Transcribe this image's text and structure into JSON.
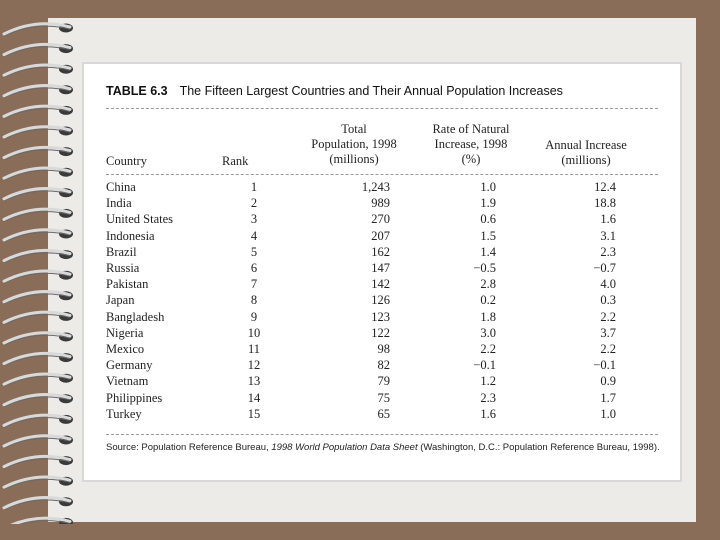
{
  "table": {
    "label": "TABLE 6.3",
    "title": "The Fifteen Largest Countries and Their Annual Population Increases",
    "headers": {
      "country": "Country",
      "rank": "Rank",
      "population": [
        "Total",
        "Population, 1998",
        "(millions)"
      ],
      "rate": [
        "Rate of Natural",
        "Increase, 1998",
        "(%)"
      ],
      "increase": [
        "Annual Increase",
        "(millions)"
      ]
    },
    "rows": [
      {
        "country": "China",
        "rank": "1",
        "population": "1,243",
        "rate": "1.0",
        "increase": "12.4"
      },
      {
        "country": "India",
        "rank": "2",
        "population": "989",
        "rate": "1.9",
        "increase": "18.8"
      },
      {
        "country": "United States",
        "rank": "3",
        "population": "270",
        "rate": "0.6",
        "increase": "1.6"
      },
      {
        "country": "Indonesia",
        "rank": "4",
        "population": "207",
        "rate": "1.5",
        "increase": "3.1"
      },
      {
        "country": "Brazil",
        "rank": "5",
        "population": "162",
        "rate": "1.4",
        "increase": "2.3"
      },
      {
        "country": "Russia",
        "rank": "6",
        "population": "147",
        "rate": "−0.5",
        "increase": "−0.7"
      },
      {
        "country": "Pakistan",
        "rank": "7",
        "population": "142",
        "rate": "2.8",
        "increase": "4.0"
      },
      {
        "country": "Japan",
        "rank": "8",
        "population": "126",
        "rate": "0.2",
        "increase": "0.3"
      },
      {
        "country": "Bangladesh",
        "rank": "9",
        "population": "123",
        "rate": "1.8",
        "increase": "2.2"
      },
      {
        "country": "Nigeria",
        "rank": "10",
        "population": "122",
        "rate": "3.0",
        "increase": "3.7"
      },
      {
        "country": "Mexico",
        "rank": "11",
        "population": "98",
        "rate": "2.2",
        "increase": "2.2"
      },
      {
        "country": "Germany",
        "rank": "12",
        "population": "82",
        "rate": "−0.1",
        "increase": "−0.1"
      },
      {
        "country": "Vietnam",
        "rank": "13",
        "population": "79",
        "rate": "1.2",
        "increase": "0.9"
      },
      {
        "country": "Philippines",
        "rank": "14",
        "population": "75",
        "rate": "2.3",
        "increase": "1.7"
      },
      {
        "country": "Turkey",
        "rank": "15",
        "population": "65",
        "rate": "1.6",
        "increase": "1.0"
      }
    ],
    "source": {
      "prefix": "Source: Population Reference Bureau, ",
      "italic": "1998 World Population Data Sheet",
      "suffix": " (Washington, D.C.: Population Reference Bureau, 1998)."
    }
  },
  "colors": {
    "background": "#8a6d58",
    "page": "#ecebe7",
    "card": "#ffffff"
  }
}
